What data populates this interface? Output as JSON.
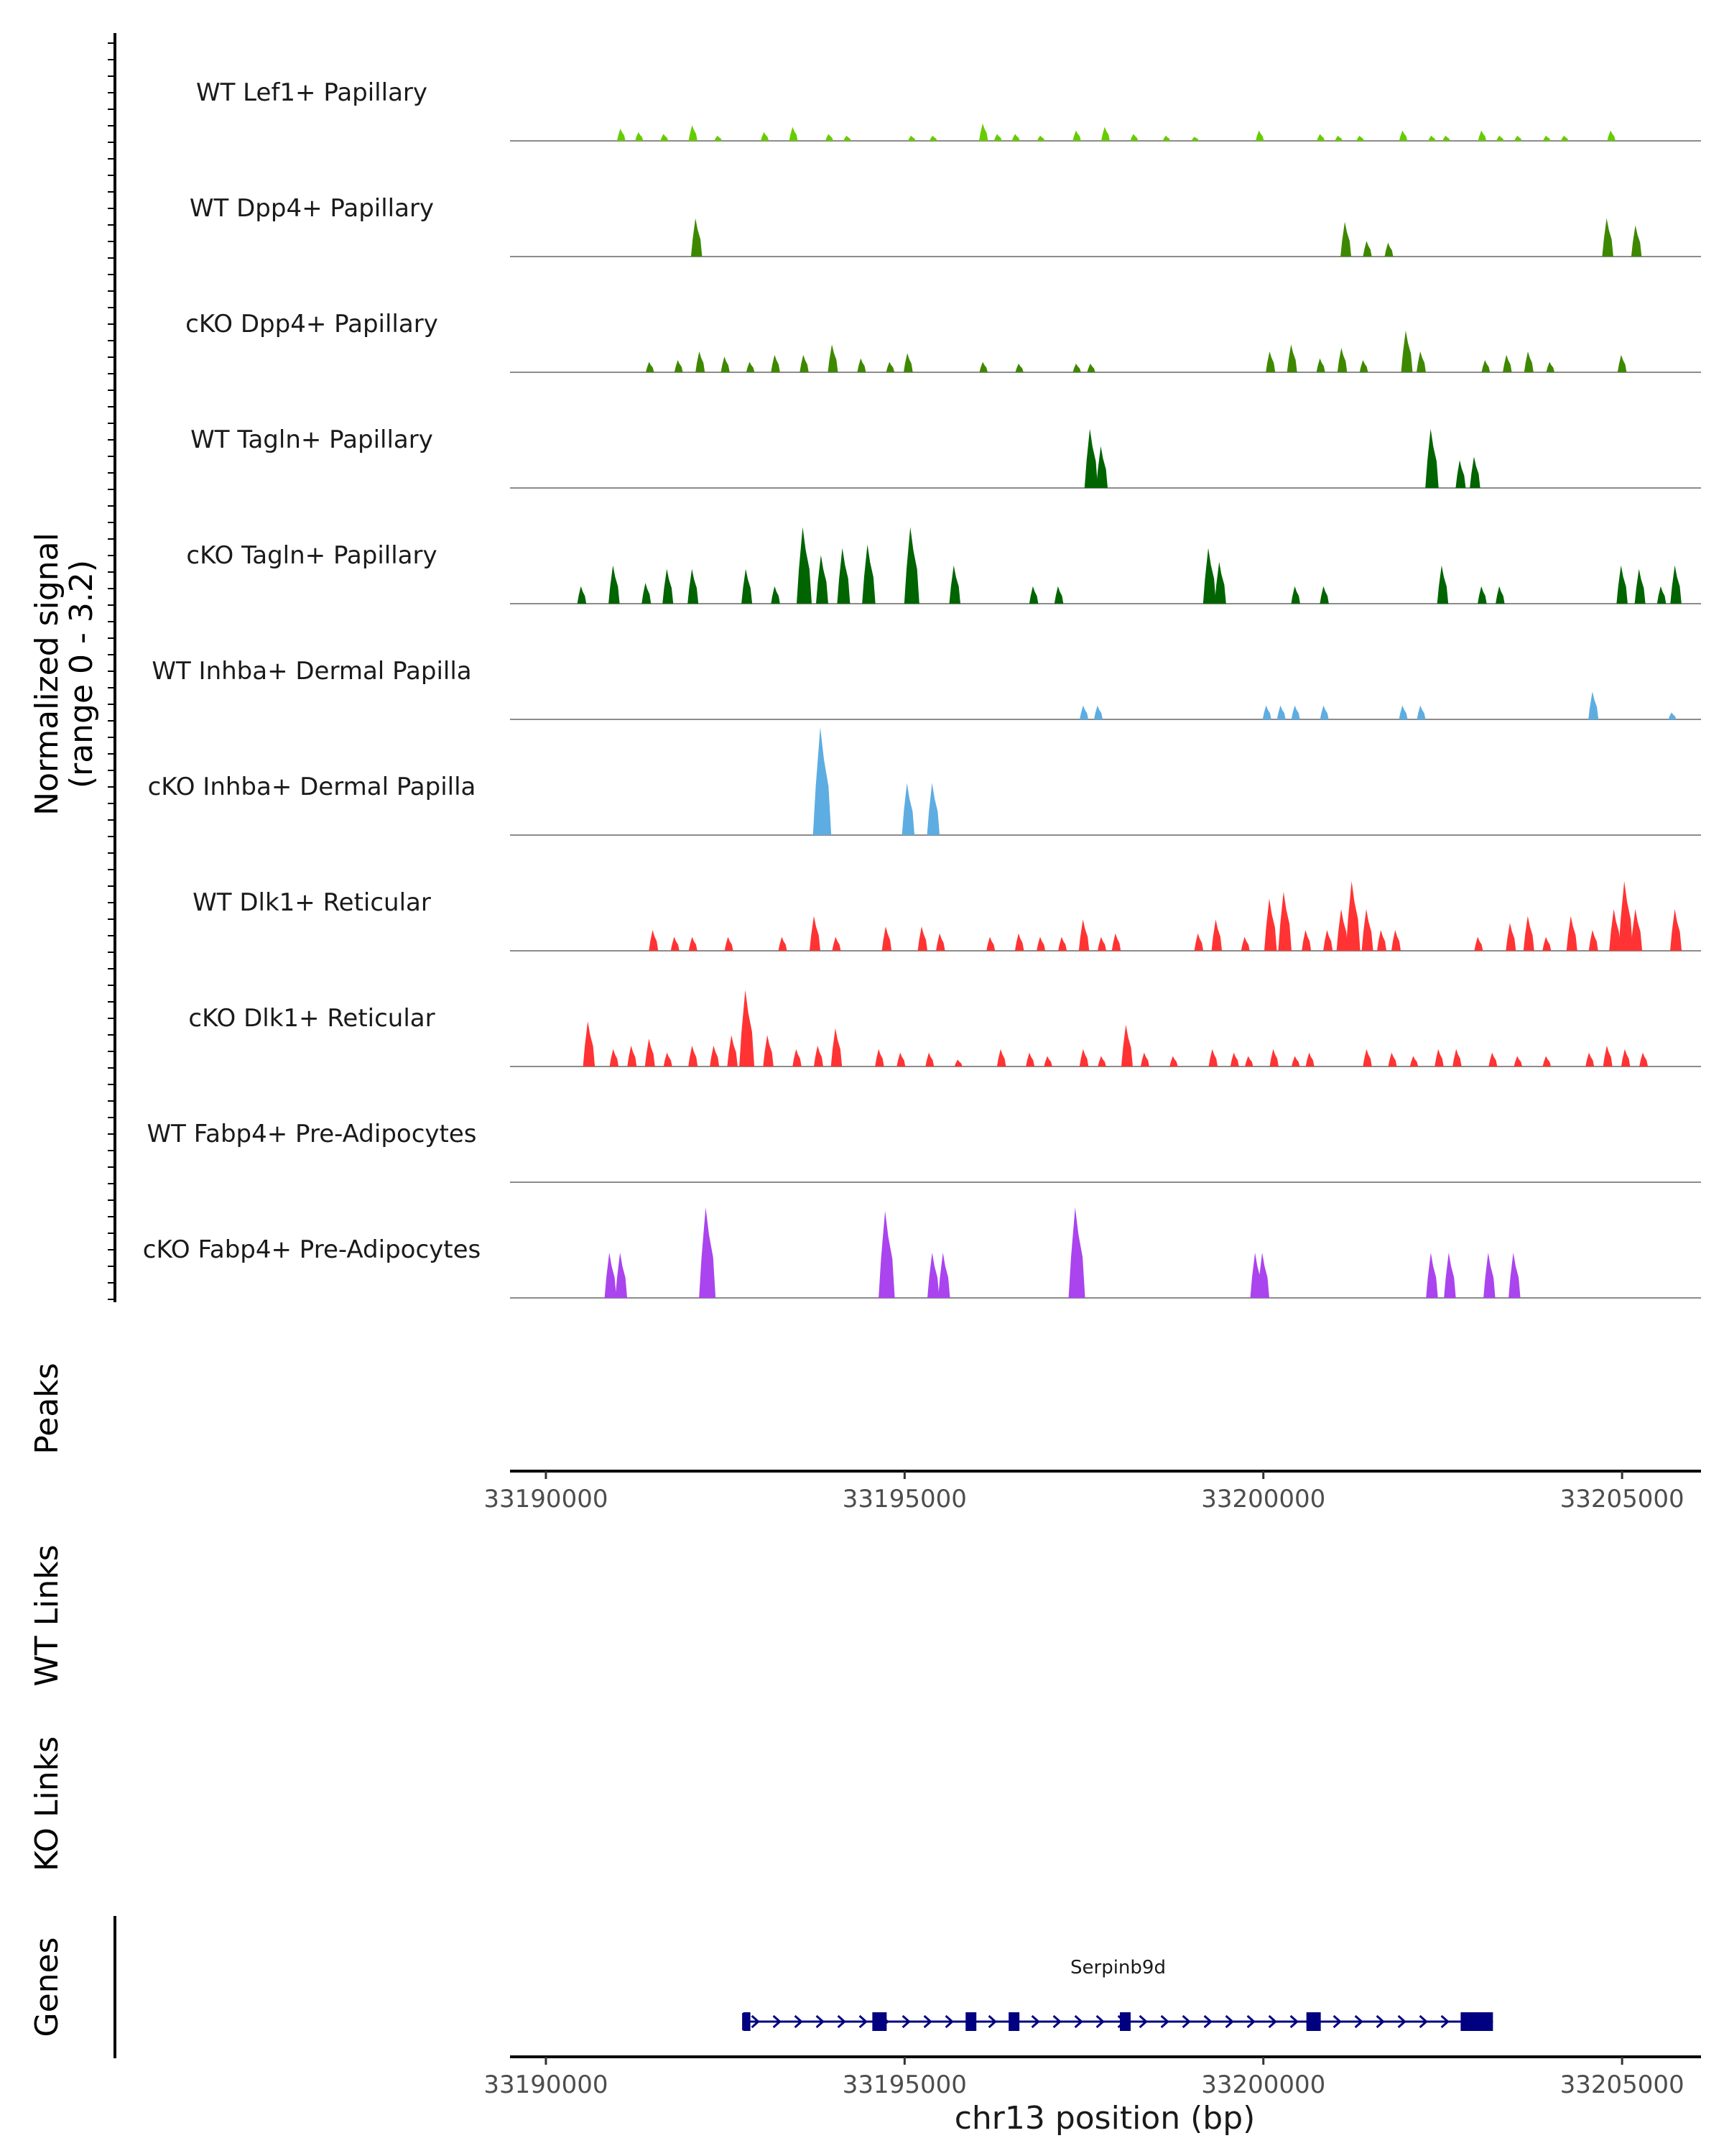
{
  "chart_data": {
    "type": "area",
    "title": "",
    "region": "chr13",
    "xlabel": "chr13 position (bp)",
    "xlim": [
      33189500,
      33206100
    ],
    "x_ticks": [
      33190000,
      33195000,
      33200000,
      33205000
    ],
    "x_tick_labels": [
      "33190000",
      "33195000",
      "33200000",
      "33205000"
    ],
    "ylabel": "Normalized signal",
    "ylabel_range": "(range 0 - 3.2)",
    "ylim": [
      0,
      3.2
    ],
    "tracks": [
      {
        "name": "WT Lef1+ Papillary",
        "color": "#66CC00",
        "peaks": [
          [
            33191050,
            0.35
          ],
          [
            33191300,
            0.25
          ],
          [
            33191650,
            0.2
          ],
          [
            33192050,
            0.45
          ],
          [
            33192400,
            0.15
          ],
          [
            33193050,
            0.25
          ],
          [
            33193450,
            0.4
          ],
          [
            33193950,
            0.2
          ],
          [
            33194200,
            0.15
          ],
          [
            33195100,
            0.15
          ],
          [
            33195400,
            0.15
          ],
          [
            33196100,
            0.5
          ],
          [
            33196300,
            0.2
          ],
          [
            33196550,
            0.2
          ],
          [
            33196900,
            0.15
          ],
          [
            33197400,
            0.3
          ],
          [
            33197800,
            0.4
          ],
          [
            33198200,
            0.2
          ],
          [
            33198650,
            0.15
          ],
          [
            33199050,
            0.12
          ],
          [
            33199950,
            0.3
          ],
          [
            33200800,
            0.2
          ],
          [
            33201050,
            0.15
          ],
          [
            33201350,
            0.15
          ],
          [
            33201950,
            0.3
          ],
          [
            33202350,
            0.15
          ],
          [
            33202550,
            0.15
          ],
          [
            33203050,
            0.3
          ],
          [
            33203300,
            0.15
          ],
          [
            33203550,
            0.15
          ],
          [
            33203950,
            0.15
          ],
          [
            33204200,
            0.15
          ],
          [
            33204850,
            0.3
          ]
        ]
      },
      {
        "name": "WT Dpp4+ Papillary",
        "color": "#3E8800",
        "peaks": [
          [
            33192100,
            1.1
          ],
          [
            33201150,
            1.0
          ],
          [
            33201450,
            0.45
          ],
          [
            33201750,
            0.4
          ],
          [
            33204800,
            1.1
          ],
          [
            33205200,
            0.9
          ]
        ]
      },
      {
        "name": "cKO Dpp4+ Papillary",
        "color": "#3E8800",
        "peaks": [
          [
            33191450,
            0.3
          ],
          [
            33191850,
            0.35
          ],
          [
            33192150,
            0.6
          ],
          [
            33192500,
            0.45
          ],
          [
            33192850,
            0.3
          ],
          [
            33193200,
            0.5
          ],
          [
            33193600,
            0.5
          ],
          [
            33194000,
            0.8
          ],
          [
            33194400,
            0.4
          ],
          [
            33194800,
            0.3
          ],
          [
            33195050,
            0.55
          ],
          [
            33196100,
            0.3
          ],
          [
            33196600,
            0.25
          ],
          [
            33197400,
            0.25
          ],
          [
            33197600,
            0.25
          ],
          [
            33200100,
            0.6
          ],
          [
            33200400,
            0.8
          ],
          [
            33200800,
            0.4
          ],
          [
            33201100,
            0.7
          ],
          [
            33201400,
            0.35
          ],
          [
            33202000,
            1.2
          ],
          [
            33202200,
            0.6
          ],
          [
            33203100,
            0.35
          ],
          [
            33203400,
            0.5
          ],
          [
            33203700,
            0.6
          ],
          [
            33204000,
            0.3
          ],
          [
            33205000,
            0.5
          ]
        ]
      },
      {
        "name": "WT Tagln+ Papillary",
        "color": "#006400",
        "peaks": [
          [
            33197600,
            1.7
          ],
          [
            33197750,
            1.2
          ],
          [
            33202350,
            1.7
          ],
          [
            33202750,
            0.8
          ],
          [
            33202950,
            0.9
          ]
        ]
      },
      {
        "name": "cKO Tagln+ Papillary",
        "color": "#006400",
        "peaks": [
          [
            33190500,
            0.5
          ],
          [
            33190950,
            1.1
          ],
          [
            33191400,
            0.6
          ],
          [
            33191700,
            1.0
          ],
          [
            33192050,
            1.0
          ],
          [
            33192800,
            1.0
          ],
          [
            33193200,
            0.5
          ],
          [
            33193600,
            2.2
          ],
          [
            33193850,
            1.4
          ],
          [
            33194150,
            1.6
          ],
          [
            33194500,
            1.7
          ],
          [
            33195100,
            2.2
          ],
          [
            33195700,
            1.1
          ],
          [
            33196800,
            0.5
          ],
          [
            33197150,
            0.5
          ],
          [
            33199250,
            1.6
          ],
          [
            33199400,
            1.2
          ],
          [
            33200450,
            0.5
          ],
          [
            33200850,
            0.5
          ],
          [
            33202500,
            1.1
          ],
          [
            33203050,
            0.5
          ],
          [
            33203300,
            0.5
          ],
          [
            33205000,
            1.1
          ],
          [
            33205250,
            1.0
          ],
          [
            33205550,
            0.5
          ],
          [
            33205750,
            1.1
          ]
        ]
      },
      {
        "name": "WT Inhba+ Dermal Papilla",
        "color": "#5DADE2",
        "peaks": [
          [
            33197500,
            0.4
          ],
          [
            33197700,
            0.4
          ],
          [
            33200050,
            0.4
          ],
          [
            33200250,
            0.4
          ],
          [
            33200450,
            0.4
          ],
          [
            33200850,
            0.4
          ],
          [
            33201950,
            0.4
          ],
          [
            33202200,
            0.4
          ],
          [
            33204600,
            0.8
          ],
          [
            33205700,
            0.2
          ]
        ]
      },
      {
        "name": "cKO Inhba+ Dermal Papilla",
        "color": "#5DADE2",
        "peaks": [
          [
            33193850,
            3.1
          ],
          [
            33195050,
            1.5
          ],
          [
            33195400,
            1.5
          ]
        ]
      },
      {
        "name": "WT Dlk1+ Reticular",
        "color": "#FF3333",
        "peaks": [
          [
            33191500,
            0.6
          ],
          [
            33191800,
            0.4
          ],
          [
            33192050,
            0.4
          ],
          [
            33192550,
            0.4
          ],
          [
            33193300,
            0.4
          ],
          [
            33193750,
            1.0
          ],
          [
            33194050,
            0.4
          ],
          [
            33194750,
            0.7
          ],
          [
            33195250,
            0.7
          ],
          [
            33195500,
            0.5
          ],
          [
            33196200,
            0.4
          ],
          [
            33196600,
            0.5
          ],
          [
            33196900,
            0.4
          ],
          [
            33197200,
            0.4
          ],
          [
            33197500,
            0.9
          ],
          [
            33197750,
            0.4
          ],
          [
            33197950,
            0.5
          ],
          [
            33199100,
            0.5
          ],
          [
            33199350,
            0.9
          ],
          [
            33199750,
            0.4
          ],
          [
            33200100,
            1.5
          ],
          [
            33200300,
            1.7
          ],
          [
            33200600,
            0.6
          ],
          [
            33200900,
            0.6
          ],
          [
            33201100,
            1.2
          ],
          [
            33201250,
            2.0
          ],
          [
            33201450,
            1.2
          ],
          [
            33201650,
            0.6
          ],
          [
            33201850,
            0.6
          ],
          [
            33203000,
            0.4
          ],
          [
            33203450,
            0.8
          ],
          [
            33203700,
            1.0
          ],
          [
            33203950,
            0.4
          ],
          [
            33204300,
            1.0
          ],
          [
            33204600,
            0.6
          ],
          [
            33204900,
            1.2
          ],
          [
            33205050,
            2.0
          ],
          [
            33205200,
            1.2
          ],
          [
            33205750,
            1.2
          ]
        ]
      },
      {
        "name": "cKO Dlk1+ Reticular",
        "color": "#FF3333",
        "peaks": [
          [
            33190600,
            1.3
          ],
          [
            33190950,
            0.5
          ],
          [
            33191200,
            0.6
          ],
          [
            33191450,
            0.8
          ],
          [
            33191700,
            0.4
          ],
          [
            33192050,
            0.6
          ],
          [
            33192350,
            0.6
          ],
          [
            33192600,
            0.9
          ],
          [
            33192800,
            2.2
          ],
          [
            33193100,
            0.9
          ],
          [
            33193500,
            0.5
          ],
          [
            33193800,
            0.6
          ],
          [
            33194050,
            1.1
          ],
          [
            33194650,
            0.5
          ],
          [
            33194950,
            0.4
          ],
          [
            33195350,
            0.4
          ],
          [
            33195750,
            0.2
          ],
          [
            33196350,
            0.5
          ],
          [
            33196750,
            0.4
          ],
          [
            33197000,
            0.3
          ],
          [
            33197500,
            0.5
          ],
          [
            33197750,
            0.3
          ],
          [
            33198100,
            1.2
          ],
          [
            33198350,
            0.4
          ],
          [
            33198750,
            0.3
          ],
          [
            33199300,
            0.5
          ],
          [
            33199600,
            0.4
          ],
          [
            33199800,
            0.3
          ],
          [
            33200150,
            0.5
          ],
          [
            33200450,
            0.3
          ],
          [
            33200650,
            0.4
          ],
          [
            33201450,
            0.5
          ],
          [
            33201800,
            0.4
          ],
          [
            33202100,
            0.3
          ],
          [
            33202450,
            0.5
          ],
          [
            33202700,
            0.5
          ],
          [
            33203200,
            0.4
          ],
          [
            33203550,
            0.3
          ],
          [
            33203950,
            0.3
          ],
          [
            33204550,
            0.4
          ],
          [
            33204800,
            0.6
          ],
          [
            33205050,
            0.5
          ],
          [
            33205300,
            0.4
          ]
        ]
      },
      {
        "name": "WT Fabp4+ Pre-Adipocytes",
        "color": "#AA44EE",
        "peaks": []
      },
      {
        "name": "cKO Fabp4+ Pre-Adipocytes",
        "color": "#AA44EE",
        "peaks": [
          [
            33190900,
            1.3
          ],
          [
            33191050,
            1.3
          ],
          [
            33192250,
            2.6
          ],
          [
            33194750,
            2.5
          ],
          [
            33195400,
            1.3
          ],
          [
            33195550,
            1.3
          ],
          [
            33197400,
            2.6
          ],
          [
            33199900,
            1.3
          ],
          [
            33200000,
            1.3
          ],
          [
            33202350,
            1.3
          ],
          [
            33202600,
            1.3
          ],
          [
            33203150,
            1.3
          ],
          [
            33203500,
            1.3
          ]
        ]
      }
    ],
    "side_panels": [
      {
        "name": "Peaks",
        "items": []
      },
      {
        "name": "WT Links",
        "items": []
      },
      {
        "name": "KO Links",
        "items": []
      }
    ],
    "genes": [
      {
        "name": "Serpinb9d",
        "start": 33192750,
        "end": 33203200,
        "strand": "+",
        "exons": [
          [
            33192750,
            33192850
          ],
          [
            33194550,
            33194750
          ],
          [
            33195850,
            33196000
          ],
          [
            33196450,
            33196600
          ],
          [
            33198000,
            33198150
          ],
          [
            33200600,
            33200800
          ],
          [
            33202750,
            33203200
          ]
        ],
        "color": "#000080"
      }
    ],
    "genes_panel_label": "Genes"
  }
}
